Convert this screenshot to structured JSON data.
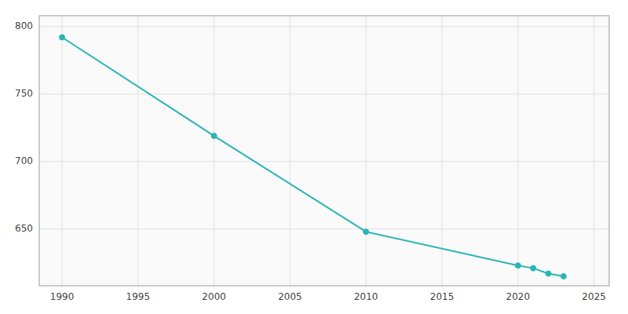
{
  "chart_data": {
    "type": "line",
    "x": [
      1990,
      2000,
      2010,
      2020,
      2021,
      2022,
      2023
    ],
    "values": [
      792,
      719,
      648,
      623,
      621,
      617,
      615
    ],
    "color": "#2ab5b5",
    "marker": "circle",
    "xlim": [
      1988.5,
      2026
    ],
    "ylim": [
      608,
      808
    ],
    "xticks": [
      1990,
      1995,
      2000,
      2005,
      2010,
      2015,
      2020,
      2025
    ],
    "yticks": [
      650,
      700,
      750,
      800
    ],
    "grid": true
  }
}
